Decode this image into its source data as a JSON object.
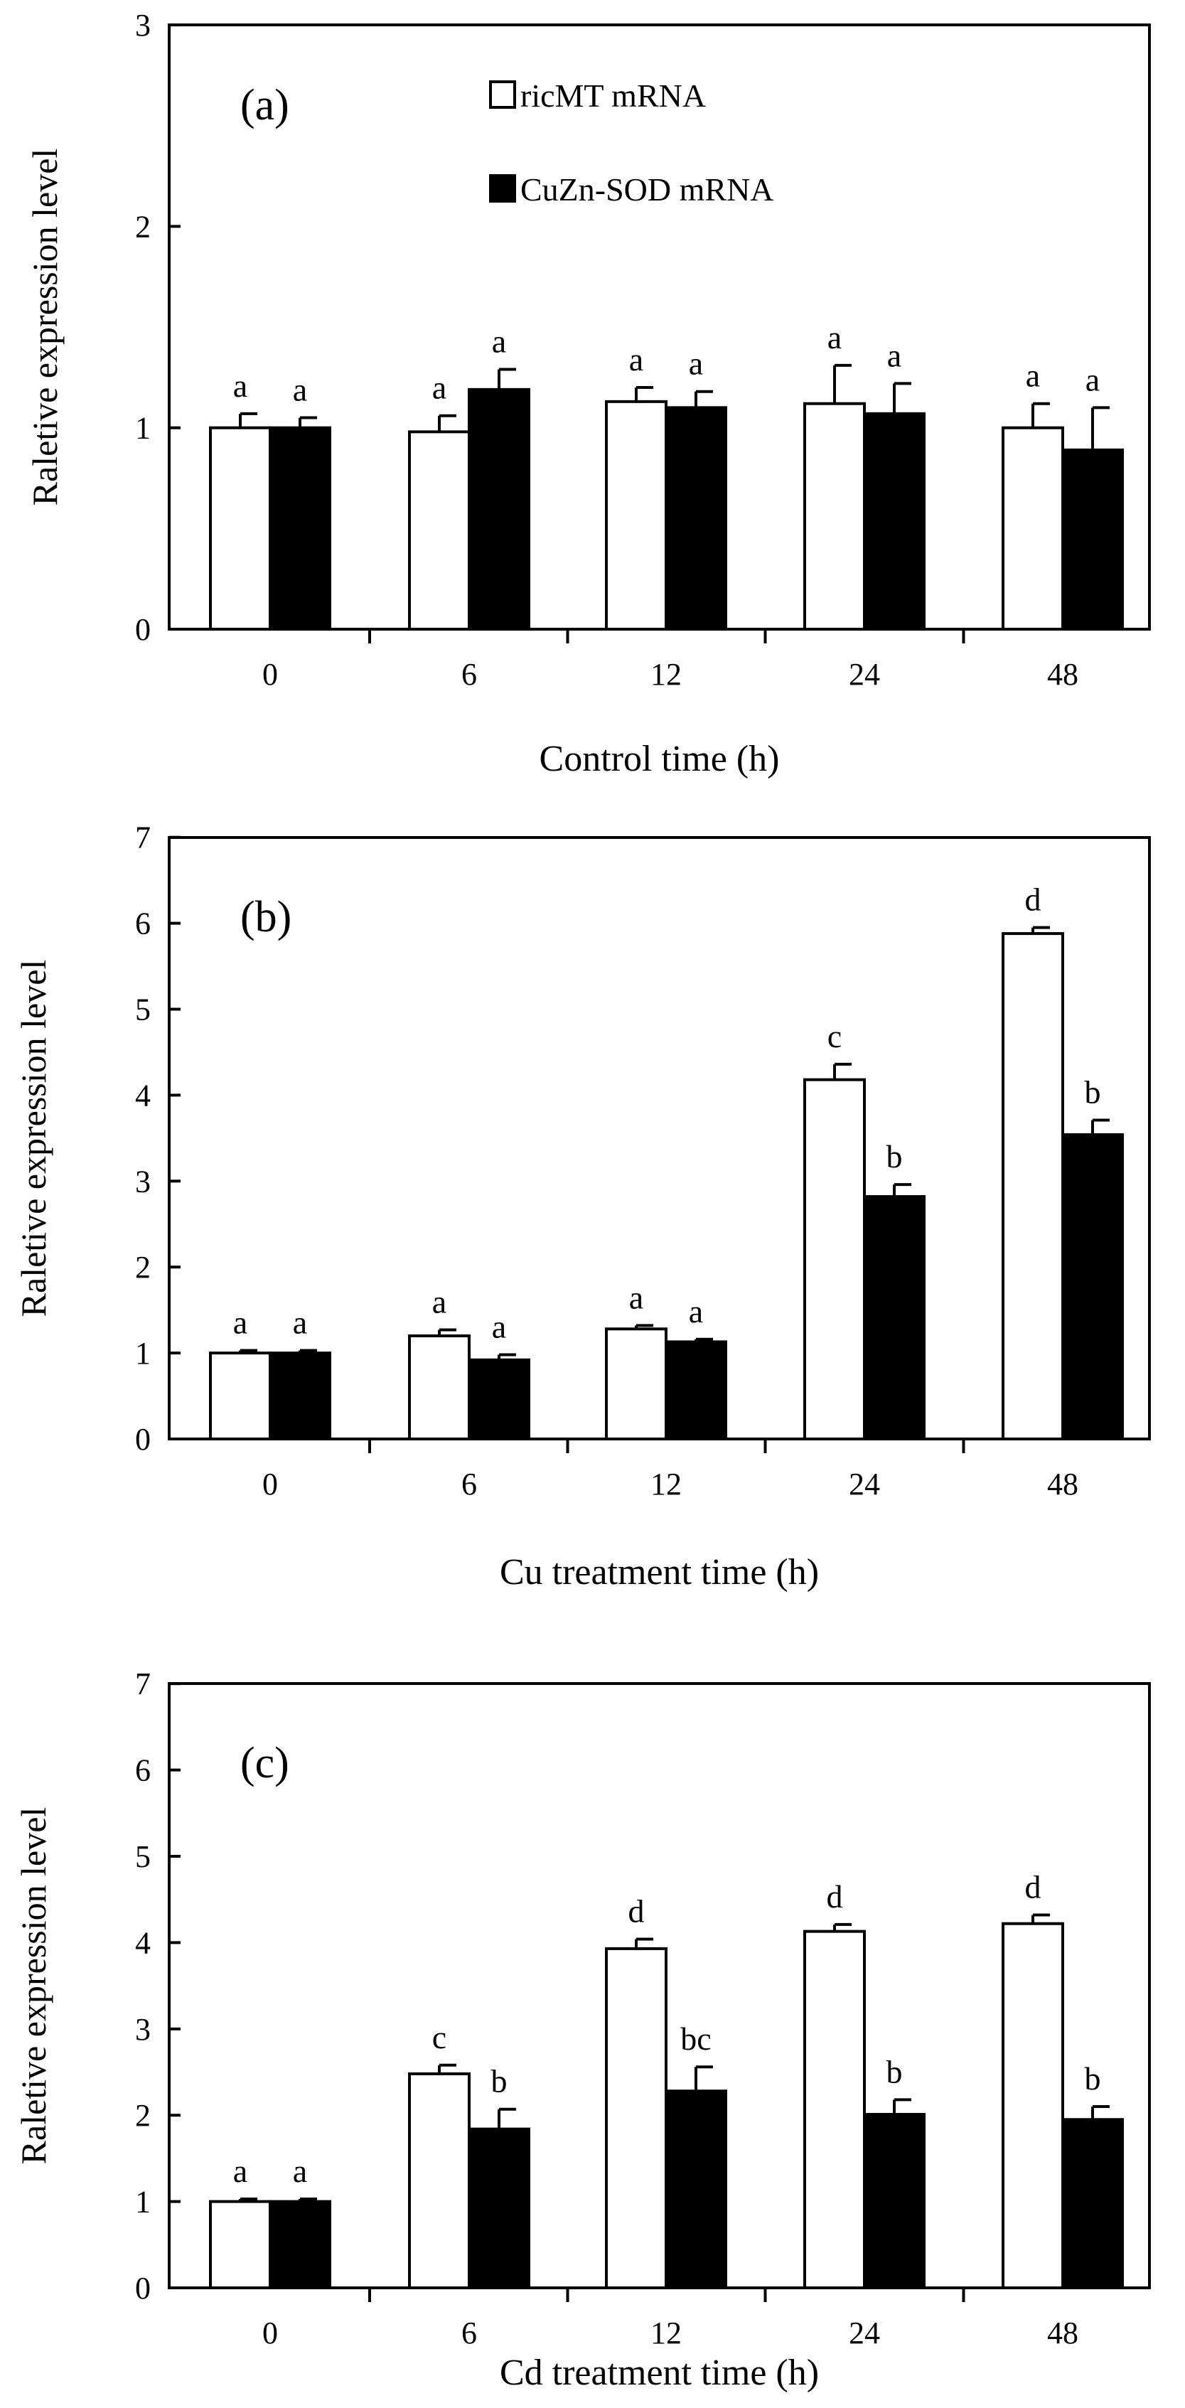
{
  "chart_data": [
    {
      "type": "bar",
      "panel_label": "(a)",
      "title": "",
      "xlabel": "Control time (h)",
      "ylabel": "Raletive expression level",
      "categories": [
        "0",
        "6",
        "12",
        "24",
        "48"
      ],
      "ylim": [
        0,
        3
      ],
      "yticks": [
        "0",
        "1",
        "2",
        "3"
      ],
      "grid": false,
      "legend_position": "top-center",
      "series": [
        {
          "name": "ricMT mRNA",
          "fill": "#ffffff",
          "values": [
            1.0,
            0.98,
            1.13,
            1.12,
            1.0
          ],
          "errors": [
            0.07,
            0.08,
            0.07,
            0.19,
            0.12
          ],
          "labels": [
            "a",
            "a",
            "a",
            "a",
            "a"
          ]
        },
        {
          "name": "CuZn-SOD mRNA",
          "fill": "#000000",
          "values": [
            1.0,
            1.19,
            1.1,
            1.07,
            0.89
          ],
          "errors": [
            0.05,
            0.1,
            0.08,
            0.15,
            0.21
          ],
          "labels": [
            "a",
            "a",
            "a",
            "a",
            "a"
          ]
        }
      ]
    },
    {
      "type": "bar",
      "panel_label": "(b)",
      "title": "",
      "xlabel": "Cu treatment time (h)",
      "ylabel": "Raletive expression level",
      "categories": [
        "0",
        "6",
        "12",
        "24",
        "48"
      ],
      "ylim": [
        0,
        7
      ],
      "yticks": [
        "0",
        "1",
        "2",
        "3",
        "4",
        "5",
        "6",
        "7"
      ],
      "grid": false,
      "series": [
        {
          "name": "ricMT mRNA",
          "fill": "#ffffff",
          "values": [
            1.0,
            1.2,
            1.28,
            4.18,
            5.88
          ],
          "errors": [
            0.03,
            0.07,
            0.04,
            0.18,
            0.07
          ],
          "labels": [
            "a",
            "a",
            "a",
            "c",
            "d"
          ]
        },
        {
          "name": "CuZn-SOD mRNA",
          "fill": "#000000",
          "values": [
            1.0,
            0.92,
            1.13,
            2.82,
            3.54
          ],
          "errors": [
            0.03,
            0.06,
            0.03,
            0.14,
            0.17
          ],
          "labels": [
            "a",
            "a",
            "a",
            "b",
            "b"
          ]
        }
      ]
    },
    {
      "type": "bar",
      "panel_label": "(c)",
      "title": "",
      "xlabel": "Cd treatment time (h)",
      "ylabel": "Raletive expression level",
      "categories": [
        "0",
        "6",
        "12",
        "24",
        "48"
      ],
      "ylim": [
        0,
        7
      ],
      "yticks": [
        "0",
        "1",
        "2",
        "3",
        "4",
        "5",
        "6",
        "7"
      ],
      "grid": false,
      "series": [
        {
          "name": "ricMT mRNA",
          "fill": "#ffffff",
          "values": [
            1.0,
            2.48,
            3.93,
            4.13,
            4.22
          ],
          "errors": [
            0.03,
            0.1,
            0.11,
            0.08,
            0.1
          ],
          "labels": [
            "a",
            "c",
            "d",
            "d",
            "d"
          ]
        },
        {
          "name": "CuZn-SOD mRNA",
          "fill": "#000000",
          "values": [
            1.0,
            1.84,
            2.28,
            2.01,
            1.95
          ],
          "errors": [
            0.03,
            0.23,
            0.28,
            0.17,
            0.15
          ],
          "labels": [
            "a",
            "b",
            "bc",
            "b",
            "b"
          ]
        }
      ]
    }
  ]
}
